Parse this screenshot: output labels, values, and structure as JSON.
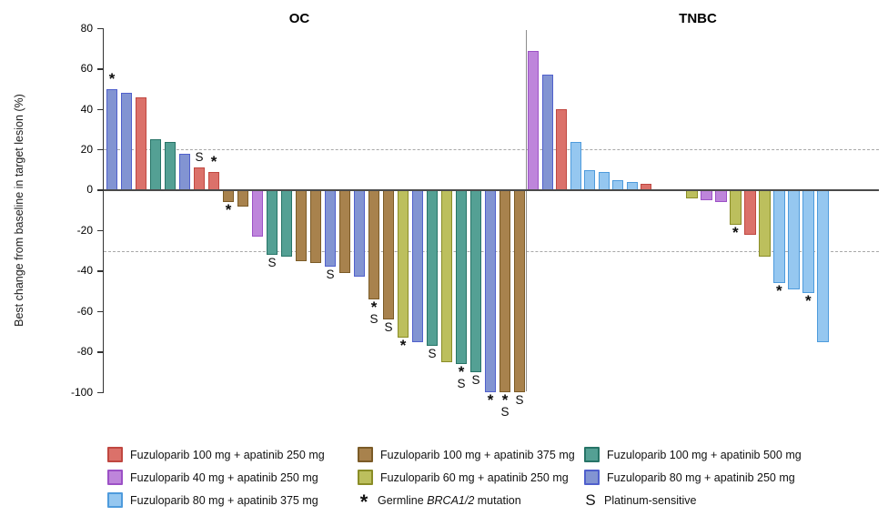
{
  "ylabel": "Best change from baseline in target lesion (%)",
  "panels_titles": {
    "oc_title": "OC",
    "tnbc_title": "TNBC"
  },
  "yticks": [
    80,
    60,
    40,
    20,
    0,
    -20,
    -40,
    -60,
    -80,
    -100
  ],
  "colors": {
    "red": {
      "fill": "#DB716A",
      "border": "#C04740"
    },
    "purple": {
      "fill": "#BE85DB",
      "border": "#9C51C6"
    },
    "lightblue": {
      "fill": "#95C7F0",
      "border": "#4E9BDC"
    },
    "brown": {
      "fill": "#A8824D",
      "border": "#7B5B27"
    },
    "olive": {
      "fill": "#BCBF5D",
      "border": "#8A8D27"
    },
    "teal": {
      "fill": "#54A094",
      "border": "#277467"
    },
    "blue": {
      "fill": "#8294D2",
      "border": "#5060CC"
    }
  },
  "chart_data": {
    "type": "bar",
    "title": "",
    "ylabel": "Best change from baseline in target lesion (%)",
    "ylim": [
      -100,
      80
    ],
    "ytick_step": 20,
    "grid": "off",
    "reference_lines": [
      20,
      -30
    ],
    "marker_meanings": {
      "*": "Germline BRCA1/2 mutation",
      "S": "Platinum-sensitive"
    },
    "groups": {
      "red": "Fuzuloparib 100 mg + apatinib 250 mg",
      "purple": "Fuzuloparib 40 mg + apatinib 250 mg",
      "lightblue": "Fuzuloparib 80 mg + apatinib 375 mg",
      "brown": "Fuzuloparib 100 mg + apatinib 375 mg",
      "olive": "Fuzuloparib 60 mg + apatinib 250 mg",
      "teal": "Fuzuloparib 100 mg + apatinib 500 mg",
      "blue": "Fuzuloparib 80 mg + apatinib 250 mg"
    },
    "panels": [
      {
        "title": "OC",
        "bars": [
          {
            "v": 50,
            "c": "blue",
            "m": "*"
          },
          {
            "v": 48,
            "c": "blue"
          },
          {
            "v": 46,
            "c": "red"
          },
          {
            "v": 25,
            "c": "teal"
          },
          {
            "v": 24,
            "c": "teal"
          },
          {
            "v": 18,
            "c": "blue"
          },
          {
            "v": 11,
            "c": "red",
            "m": "S"
          },
          {
            "v": 9,
            "c": "red",
            "m": "*"
          },
          {
            "v": -6,
            "c": "brown",
            "m": "*"
          },
          {
            "v": -8,
            "c": "brown"
          },
          {
            "v": -23,
            "c": "purple"
          },
          {
            "v": -32,
            "c": "teal",
            "m": "S"
          },
          {
            "v": -33,
            "c": "teal"
          },
          {
            "v": -35,
            "c": "brown"
          },
          {
            "v": -36,
            "c": "brown"
          },
          {
            "v": -38,
            "c": "blue",
            "m": "S"
          },
          {
            "v": -41,
            "c": "brown"
          },
          {
            "v": -43,
            "c": "blue"
          },
          {
            "v": -54,
            "c": "brown",
            "m": "*S"
          },
          {
            "v": -64,
            "c": "brown",
            "m": "S"
          },
          {
            "v": -73,
            "c": "olive",
            "m": "*"
          },
          {
            "v": -75,
            "c": "blue"
          },
          {
            "v": -77,
            "c": "teal",
            "m": "S"
          },
          {
            "v": -85,
            "c": "olive"
          },
          {
            "v": -86,
            "c": "teal",
            "m": "*S"
          },
          {
            "v": -90,
            "c": "teal",
            "m": "S"
          },
          {
            "v": -100,
            "c": "blue",
            "m": "*"
          },
          {
            "v": -100,
            "c": "brown",
            "m": "*S"
          },
          {
            "v": -100,
            "c": "brown",
            "m": "S"
          }
        ]
      },
      {
        "title": "TNBC",
        "bars": [
          {
            "v": 69,
            "c": "purple"
          },
          {
            "v": 57,
            "c": "blue"
          },
          {
            "v": 40,
            "c": "red"
          },
          {
            "v": 24,
            "c": "lightblue"
          },
          {
            "v": 10,
            "c": "lightblue"
          },
          {
            "v": 9,
            "c": "lightblue"
          },
          {
            "v": 5,
            "c": "lightblue"
          },
          {
            "v": 4,
            "c": "lightblue"
          },
          {
            "v": 3,
            "c": "red"
          },
          {
            "v": -4,
            "c": "olive"
          },
          {
            "v": -5,
            "c": "purple"
          },
          {
            "v": -6,
            "c": "purple"
          },
          {
            "v": -17,
            "c": "olive",
            "m": "*"
          },
          {
            "v": -22,
            "c": "red"
          },
          {
            "v": -33,
            "c": "olive"
          },
          {
            "v": -46,
            "c": "lightblue",
            "m": "*"
          },
          {
            "v": -49,
            "c": "lightblue"
          },
          {
            "v": -51,
            "c": "lightblue",
            "m": "*"
          },
          {
            "v": -75,
            "c": "lightblue"
          }
        ]
      }
    ],
    "legend": [
      {
        "swatch": "red",
        "label": "Fuzuloparib 100 mg + apatinib 250 mg"
      },
      {
        "swatch": "brown",
        "label": "Fuzuloparib 100 mg + apatinib 375 mg"
      },
      {
        "swatch": "teal",
        "label": "Fuzuloparib 100 mg + apatinib 500 mg"
      },
      {
        "swatch": "purple",
        "label": "Fuzuloparib 40 mg + apatinib 250 mg"
      },
      {
        "swatch": "olive",
        "label": "Fuzuloparib 60 mg + apatinib 250 mg"
      },
      {
        "swatch": "blue",
        "label": "Fuzuloparib 80 mg + apatinib 250 mg"
      },
      {
        "swatch": "lightblue",
        "label": "Fuzuloparib 80 mg + apatinib 375 mg"
      },
      {
        "symbol": "*",
        "prefix": "Germline ",
        "italic": "BRCA1/2",
        "suffix": " mutation"
      },
      {
        "symbol": "S",
        "label": "Platinum-sensitive"
      }
    ]
  }
}
